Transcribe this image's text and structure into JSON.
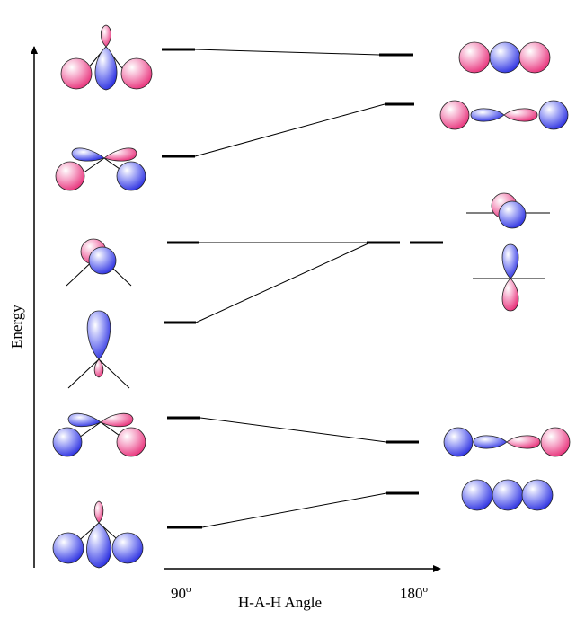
{
  "energy_label": "Energy",
  "angle_label": "H-A-H Angle",
  "angle_start": "90",
  "angle_end": "180",
  "degree_mark": "o",
  "colors": {
    "pink": "#e8317a",
    "blue": "#2b2fe0",
    "line": "#000000",
    "background": "#ffffff"
  }
}
